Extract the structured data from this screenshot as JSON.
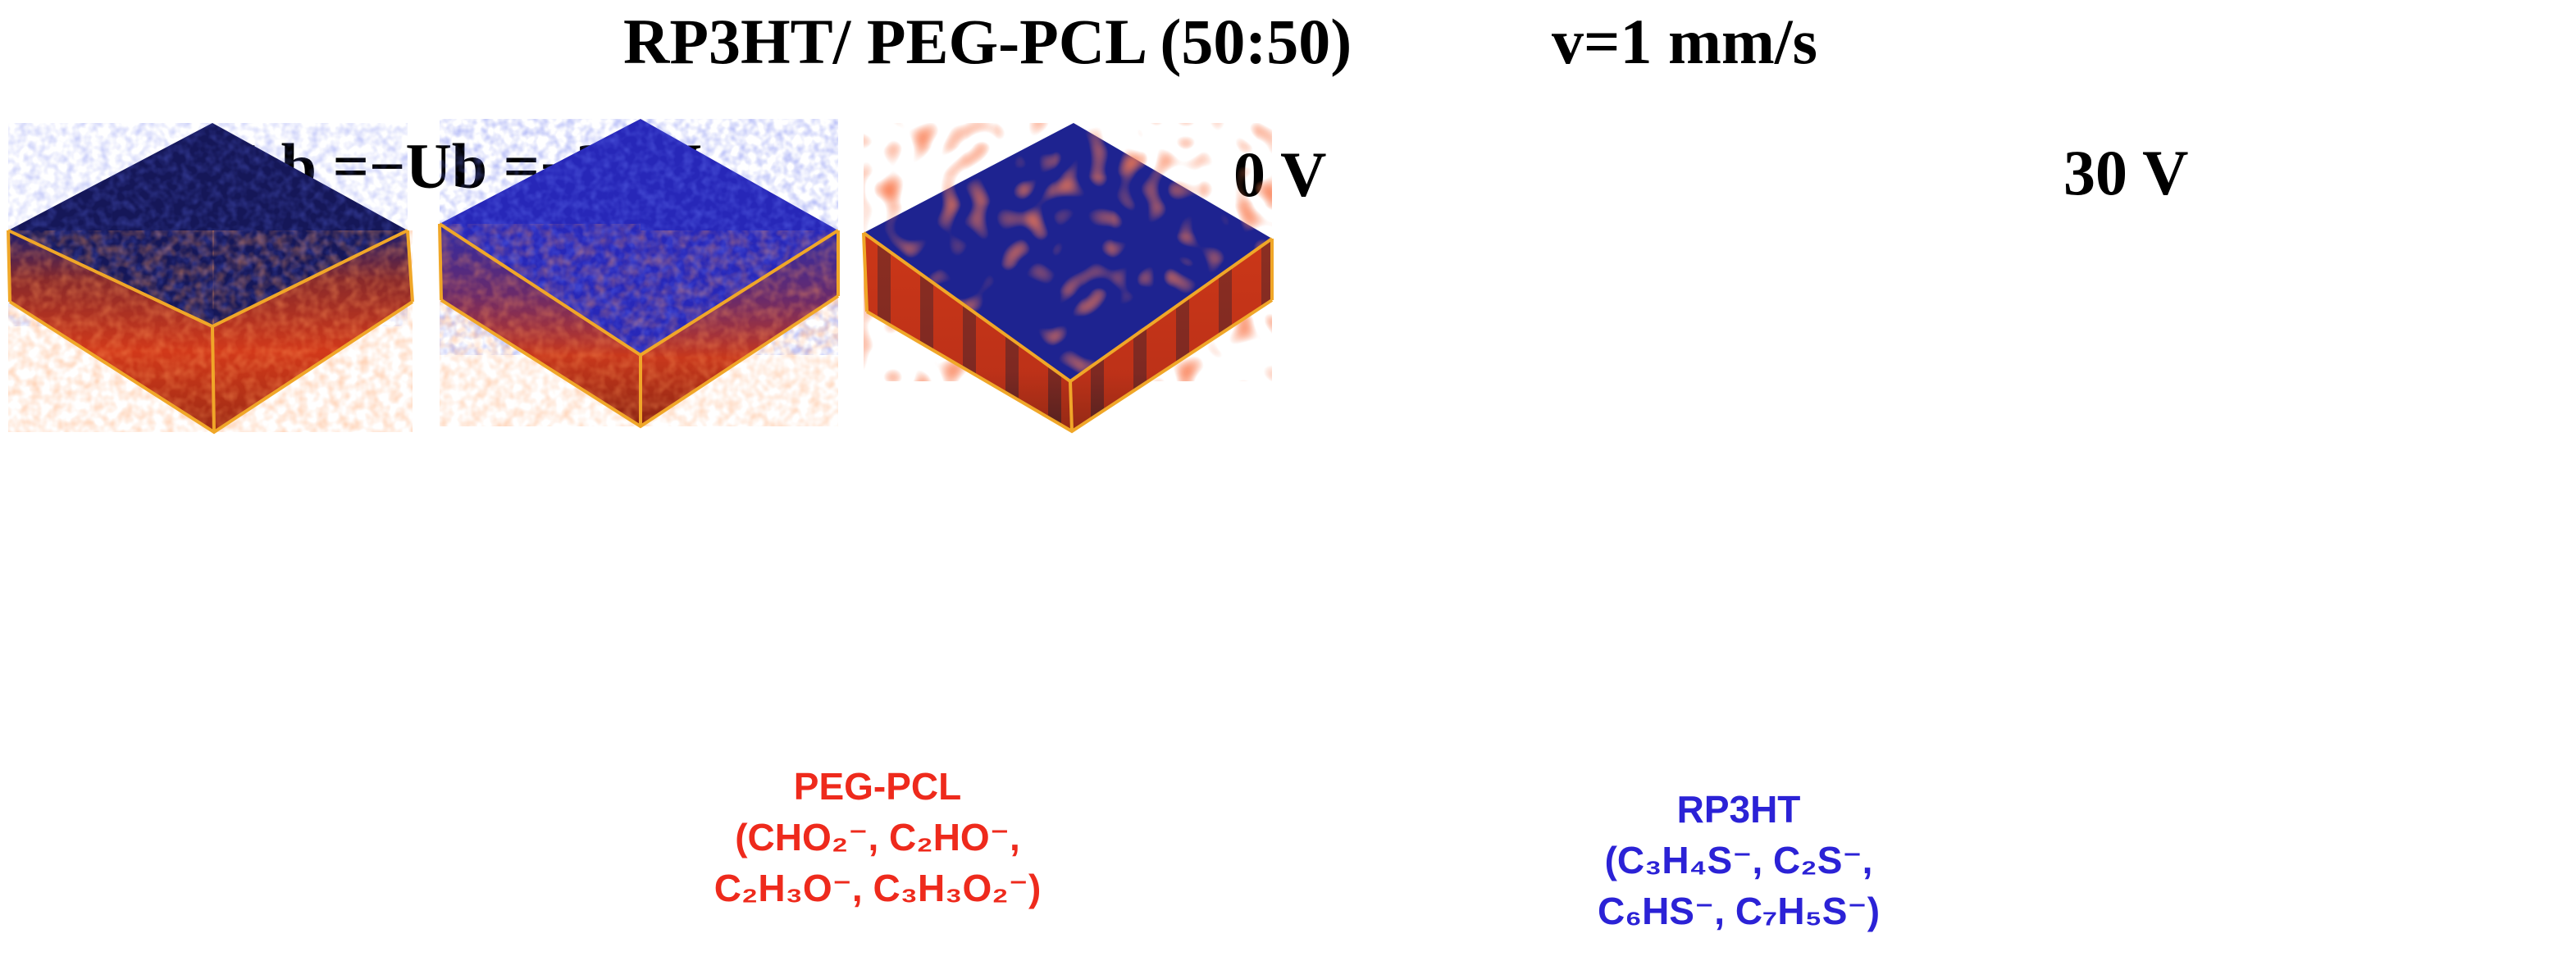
{
  "header": {
    "title": "RP3HT/ PEG-PCL (50:50)",
    "speed": "v=1 mm/s"
  },
  "panels": [
    {
      "label": "Usb =−Ub =−30 V"
    },
    {
      "label": "0 V"
    },
    {
      "label": "30 V"
    }
  ],
  "legend": {
    "peg_pcl": {
      "name": "PEG-PCL",
      "ions_line1": "(CHO₂⁻, C₂HO⁻,",
      "ions_line2": "C₂H₃O⁻, C₃H₃O₂⁻)",
      "color": "#ee2a1c"
    },
    "rp3ht": {
      "name": "RP3HT",
      "ions_line1": "(C₃H₄S⁻, C₂S⁻,",
      "ions_line2": "C₆HS⁻, C₇H₅S⁻)",
      "color": "#2b22d6"
    }
  },
  "colors": {
    "box_edge": "#f0a728",
    "dark_blue": "#151860",
    "blue": "#2a2ac0",
    "red": "#d8401a"
  }
}
